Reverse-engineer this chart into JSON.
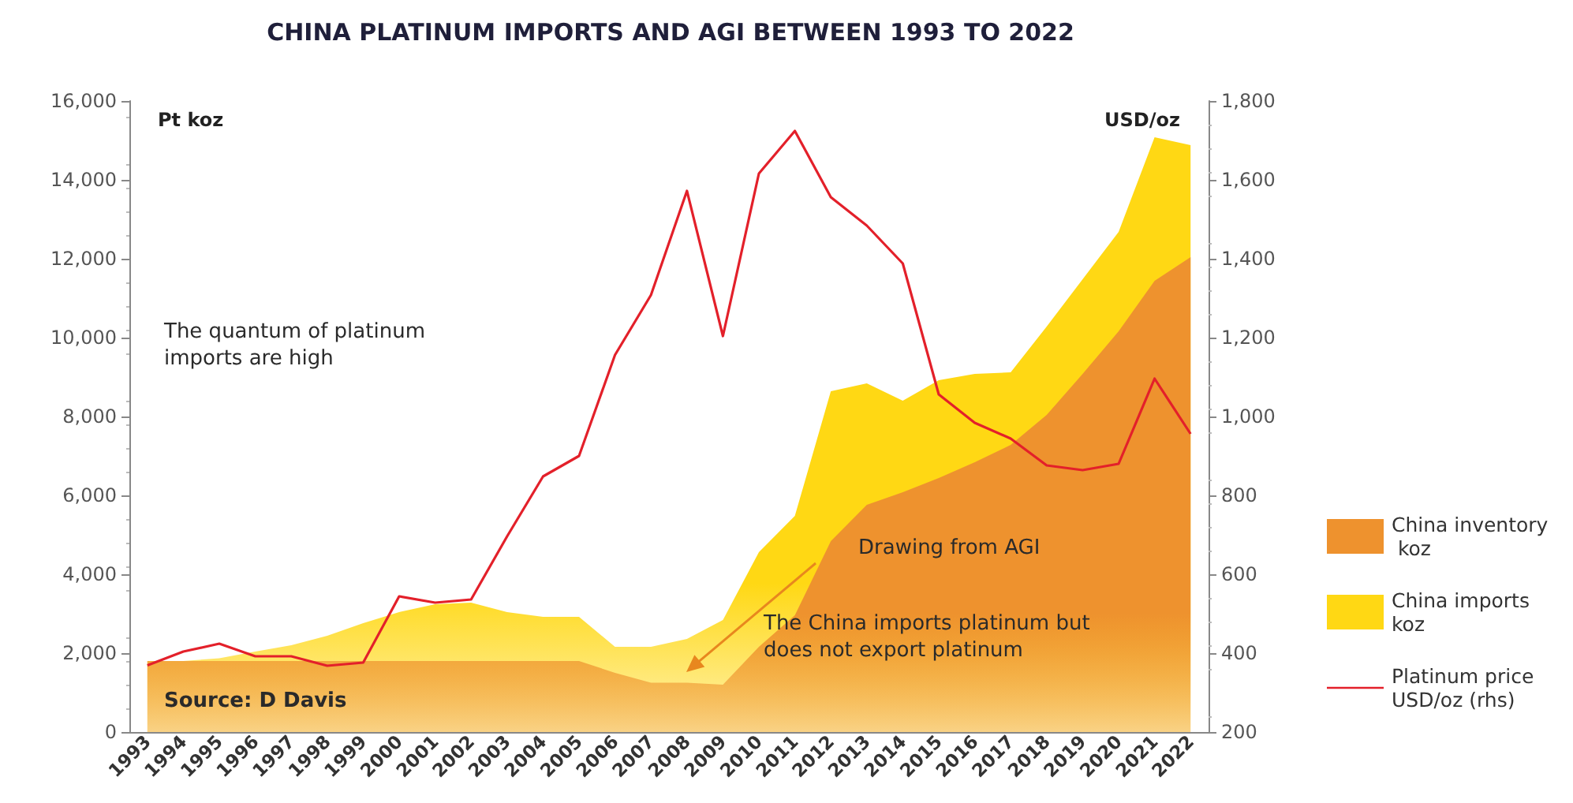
{
  "chart_data": {
    "type": "area",
    "title": "CHINA PLATINUM IMPORTS AND AGI BETWEEN 1993 TO 2022",
    "ylabel": "Pt koz",
    "y2label": "USD/oz",
    "categories": [
      "1993",
      "1994",
      "1995",
      "1996",
      "1997",
      "1998",
      "1999",
      "2000",
      "2001",
      "2002",
      "2003",
      "2004",
      "2005",
      "2006",
      "2007",
      "2008",
      "2009",
      "2010",
      "2011",
      "2012",
      "2013",
      "2014",
      "2015",
      "2016",
      "2017",
      "2018",
      "2019",
      "2020",
      "2021",
      "2022"
    ],
    "series": [
      {
        "name": "China inventory koz",
        "color": "#ee922e",
        "values": [
          1800,
          1800,
          1800,
          1800,
          1800,
          1800,
          1800,
          1800,
          1800,
          1800,
          1800,
          1800,
          1800,
          1500,
          1250,
          1250,
          1200,
          2160,
          2960,
          4840,
          5760,
          6080,
          6440,
          6840,
          7280,
          8040,
          9080,
          10160,
          11440,
          12040
        ]
      },
      {
        "name": "China imports koz",
        "color": "#ffd814",
        "values": [
          1800,
          1800,
          1870,
          2040,
          2200,
          2440,
          2760,
          3040,
          3240,
          3280,
          3040,
          2920,
          2920,
          2160,
          2160,
          2360,
          2840,
          4560,
          5480,
          8640,
          8840,
          8400,
          8920,
          9080,
          9120,
          10280,
          11480,
          12680,
          15080,
          14880
        ]
      },
      {
        "name": "Platinum price USD/oz (rhs)",
        "type": "line",
        "axis": "y2",
        "color": "#e3202a",
        "values": [
          369,
          404,
          424,
          392,
          392,
          368,
          376,
          544,
          528,
          536,
          696,
          848,
          900,
          1156,
          1308,
          1572,
          1204,
          1616,
          1724,
          1556,
          1484,
          1388,
          1056,
          984,
          944,
          876,
          864,
          880,
          1096,
          956
        ]
      }
    ],
    "ylim": [
      0,
      16000
    ],
    "yticks": [
      0,
      {
        "value": 2000,
        "label": "2,000"
      },
      {
        "value": 4000,
        "label": "4,000"
      },
      {
        "value": 6000,
        "label": "6,000"
      },
      {
        "value": 8000,
        "label": "8,000"
      },
      {
        "value": 10000,
        "label": "10,000"
      },
      {
        "value": 12000,
        "label": "12,000"
      },
      {
        "value": 14000,
        "label": "14,000"
      },
      {
        "value": 16000,
        "label": "16,000"
      }
    ],
    "y2lim": [
      200,
      1800
    ],
    "y2ticks": [
      200,
      400,
      600,
      800,
      {
        "value": 1000,
        "label": "1,000"
      },
      {
        "value": 1200,
        "label": "1,200"
      },
      {
        "value": 1400,
        "label": "1,400"
      },
      {
        "value": 1600,
        "label": "1,600"
      },
      {
        "value": 1800,
        "label": "1,800"
      }
    ],
    "annotations": [
      "The quantum of platinum imports are high",
      "Drawing from AGI",
      "The China imports platinum but does not export platinum",
      "Source: D Davis"
    ],
    "legend": "right",
    "marker": "none",
    "line_style": "solid",
    "grid": false
  }
}
